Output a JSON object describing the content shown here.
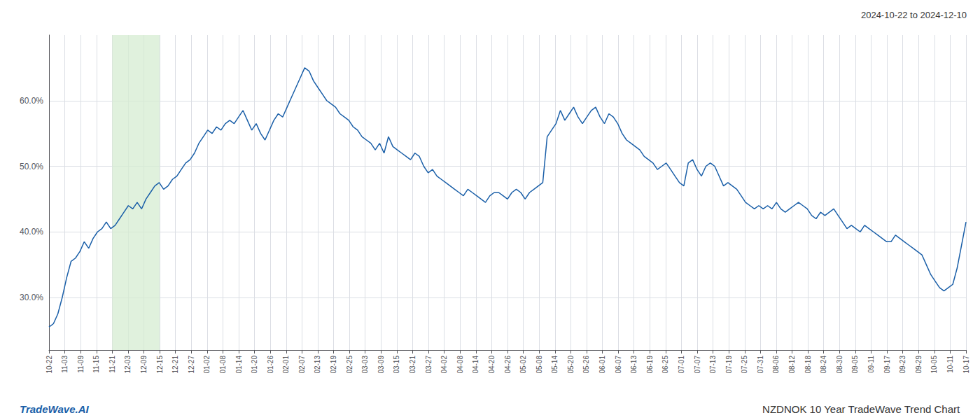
{
  "chart_data": {
    "type": "line",
    "title": "2024-10-22 to 2024-12-10",
    "annotations": [
      "TradeWave.AI",
      "NZDNOK 10 Year TradeWave Trend Chart"
    ],
    "color": "#1a5fa8",
    "grid": true,
    "x": [
      0,
      1,
      2,
      3,
      4,
      5,
      6,
      7,
      8,
      9,
      10,
      11,
      12,
      13,
      14,
      15,
      16,
      17,
      18,
      19,
      20,
      21,
      22,
      23,
      24,
      25,
      26,
      27,
      28,
      29,
      30,
      31,
      32,
      33,
      34,
      35,
      36,
      37,
      38,
      39,
      40,
      41,
      42,
      43,
      44,
      45,
      46,
      47,
      48,
      49,
      50,
      51,
      52,
      53,
      54,
      55,
      56,
      57,
      58,
      59,
      60,
      61,
      62,
      63,
      64,
      65,
      66,
      67,
      68,
      69,
      70,
      71,
      72,
      73,
      74,
      75,
      76,
      77,
      78,
      79,
      80,
      81,
      82,
      83,
      84,
      85,
      86,
      87,
      88,
      89,
      90,
      91,
      92,
      93,
      94,
      95,
      96,
      97,
      98,
      99,
      100,
      101,
      102,
      103,
      104,
      105,
      106,
      107,
      108,
      109,
      110,
      111,
      112,
      113,
      114,
      115,
      116,
      117,
      118,
      119,
      120,
      121,
      122,
      123,
      124,
      125,
      126,
      127,
      128,
      129,
      130,
      131,
      132,
      133,
      134,
      135,
      136,
      137,
      138,
      139,
      140,
      141,
      142,
      143,
      144,
      145,
      146,
      147,
      148,
      149,
      150,
      151,
      152,
      153,
      154,
      155,
      156,
      157,
      158,
      159,
      160,
      161,
      162,
      163,
      164,
      165,
      166,
      167,
      168,
      169,
      170,
      171,
      172,
      173,
      174,
      175,
      176,
      177,
      178,
      179,
      180,
      181,
      182,
      183,
      184,
      185,
      186,
      187,
      188,
      189,
      190,
      191,
      192,
      193,
      194,
      195,
      196,
      197,
      198,
      199,
      200,
      201,
      202,
      203,
      204,
      205,
      206,
      207,
      208
    ],
    "values": [
      25.5,
      26.0,
      27.5,
      30.0,
      33.0,
      35.5,
      36.0,
      37.0,
      38.5,
      37.5,
      39.0,
      40.0,
      40.5,
      41.5,
      40.5,
      41.0,
      42.0,
      43.0,
      44.0,
      43.5,
      44.5,
      43.5,
      45.0,
      46.0,
      47.0,
      47.5,
      46.5,
      47.0,
      48.0,
      48.5,
      49.5,
      50.5,
      51.0,
      52.0,
      53.5,
      54.5,
      55.5,
      55.0,
      56.0,
      55.5,
      56.5,
      57.0,
      56.5,
      57.5,
      58.5,
      57.0,
      55.5,
      56.5,
      55.0,
      54.0,
      55.5,
      57.0,
      58.0,
      57.5,
      59.0,
      60.5,
      62.0,
      63.5,
      65.0,
      64.5,
      63.0,
      62.0,
      61.0,
      60.0,
      59.5,
      59.0,
      58.0,
      57.5,
      57.0,
      56.0,
      55.5,
      54.5,
      54.0,
      53.5,
      52.5,
      53.5,
      52.0,
      54.5,
      53.0,
      52.5,
      52.0,
      51.5,
      51.0,
      52.0,
      51.5,
      50.0,
      49.0,
      49.5,
      48.5,
      48.0,
      47.5,
      47.0,
      46.5,
      46.0,
      45.5,
      46.5,
      46.0,
      45.5,
      45.0,
      44.5,
      45.5,
      46.0,
      46.0,
      45.5,
      45.0,
      46.0,
      46.5,
      46.0,
      45.0,
      46.0,
      46.5,
      47.0,
      47.5,
      54.5,
      55.5,
      56.5,
      58.5,
      57.0,
      58.0,
      59.0,
      57.5,
      56.5,
      57.5,
      58.5,
      59.0,
      57.5,
      56.5,
      58.0,
      57.5,
      56.5,
      55.0,
      54.0,
      53.5,
      53.0,
      52.5,
      51.5,
      51.0,
      50.5,
      49.5,
      50.0,
      50.5,
      49.5,
      48.5,
      47.5,
      47.0,
      50.5,
      51.0,
      49.5,
      48.5,
      50.0,
      50.5,
      50.0,
      48.5,
      47.0,
      47.5,
      47.0,
      46.5,
      45.5,
      44.5,
      44.0,
      43.5,
      44.0,
      43.5,
      44.0,
      43.5,
      44.5,
      43.5,
      43.0,
      43.5,
      44.0,
      44.5,
      44.0,
      43.5,
      42.5,
      42.0,
      43.0,
      42.5,
      43.0,
      43.5,
      42.5,
      41.5,
      40.5,
      41.0,
      40.5,
      40.0,
      41.0,
      40.5,
      40.0,
      39.5,
      39.0,
      38.5,
      38.5,
      39.5,
      39.0,
      38.5,
      38.0,
      37.5,
      37.0,
      36.5,
      35.0,
      33.5,
      32.5,
      31.5,
      31.0,
      31.5,
      32.0,
      34.5,
      38.0,
      41.5
    ],
    "xlim": [
      0,
      208
    ],
    "xticks": [
      {
        "value": 0,
        "label": "10-22"
      },
      {
        "value": 3.58621,
        "label": "11-03"
      },
      {
        "value": 7.17241,
        "label": "11-09"
      },
      {
        "value": 10.75862,
        "label": "11-15"
      },
      {
        "value": 14.34483,
        "label": "11-21"
      },
      {
        "value": 17.93103,
        "label": "12-03"
      },
      {
        "value": 21.51724,
        "label": "12-09"
      },
      {
        "value": 25.10345,
        "label": "12-15"
      },
      {
        "value": 28.68966,
        "label": "12-21"
      },
      {
        "value": 32.27586,
        "label": "12-27"
      },
      {
        "value": 35.86207,
        "label": "01-02"
      },
      {
        "value": 39.44828,
        "label": "01-08"
      },
      {
        "value": 43.03448,
        "label": "01-14"
      },
      {
        "value": 46.62069,
        "label": "01-20"
      },
      {
        "value": 50.2069,
        "label": "01-26"
      },
      {
        "value": 53.7931,
        "label": "02-01"
      },
      {
        "value": 57.37931,
        "label": "02-07"
      },
      {
        "value": 60.96552,
        "label": "02-13"
      },
      {
        "value": 64.55172,
        "label": "02-19"
      },
      {
        "value": 68.13793,
        "label": "02-25"
      },
      {
        "value": 71.72414,
        "label": "03-03"
      },
      {
        "value": 75.31034,
        "label": "03-09"
      },
      {
        "value": 78.89655,
        "label": "03-15"
      },
      {
        "value": 82.48276,
        "label": "03-21"
      },
      {
        "value": 86.06897,
        "label": "03-27"
      },
      {
        "value": 89.65517,
        "label": "04-02"
      },
      {
        "value": 93.24138,
        "label": "04-08"
      },
      {
        "value": 96.82759,
        "label": "04-14"
      },
      {
        "value": 100.41379,
        "label": "04-20"
      },
      {
        "value": 104,
        "label": "04-26"
      },
      {
        "value": 107.58621,
        "label": "05-02"
      },
      {
        "value": 111.17241,
        "label": "05-08"
      },
      {
        "value": 114.75862,
        "label": "05-14"
      },
      {
        "value": 118.34483,
        "label": "05-20"
      },
      {
        "value": 121.93103,
        "label": "05-26"
      },
      {
        "value": 125.51724,
        "label": "06-01"
      },
      {
        "value": 129.10345,
        "label": "06-07"
      },
      {
        "value": 132.68966,
        "label": "06-13"
      },
      {
        "value": 136.27586,
        "label": "06-19"
      },
      {
        "value": 139.86207,
        "label": "06-25"
      },
      {
        "value": 143.44828,
        "label": "07-01"
      },
      {
        "value": 147.03448,
        "label": "07-07"
      },
      {
        "value": 150.62069,
        "label": "07-13"
      },
      {
        "value": 154.2069,
        "label": "07-19"
      },
      {
        "value": 157.7931,
        "label": "07-25"
      },
      {
        "value": 161.37931,
        "label": "07-31"
      },
      {
        "value": 164.96552,
        "label": "08-06"
      },
      {
        "value": 168.55172,
        "label": "08-12"
      },
      {
        "value": 172.13793,
        "label": "08-18"
      },
      {
        "value": 175.72414,
        "label": "08-24"
      },
      {
        "value": 179.31034,
        "label": "08-30"
      },
      {
        "value": 182.89655,
        "label": "09-05"
      },
      {
        "value": 186.48276,
        "label": "09-11"
      },
      {
        "value": 190.06897,
        "label": "09-17"
      },
      {
        "value": 193.65517,
        "label": "09-23"
      },
      {
        "value": 197.24138,
        "label": "09-29"
      },
      {
        "value": 200.82759,
        "label": "10-05"
      },
      {
        "value": 204.41379,
        "label": "10-11"
      },
      {
        "value": 208,
        "label": "10-17"
      }
    ],
    "ylim": [
      22,
      70
    ],
    "yticks": [
      {
        "value": 30.0,
        "label": "30.0%"
      },
      {
        "value": 40.0,
        "label": "40.0%"
      },
      {
        "value": 50.0,
        "label": "50.0%"
      },
      {
        "value": 60.0,
        "label": "60.0%"
      }
    ],
    "shaded_span": {
      "start": 14.34483,
      "end": 25.10345,
      "color": "#d6ecd2"
    }
  }
}
